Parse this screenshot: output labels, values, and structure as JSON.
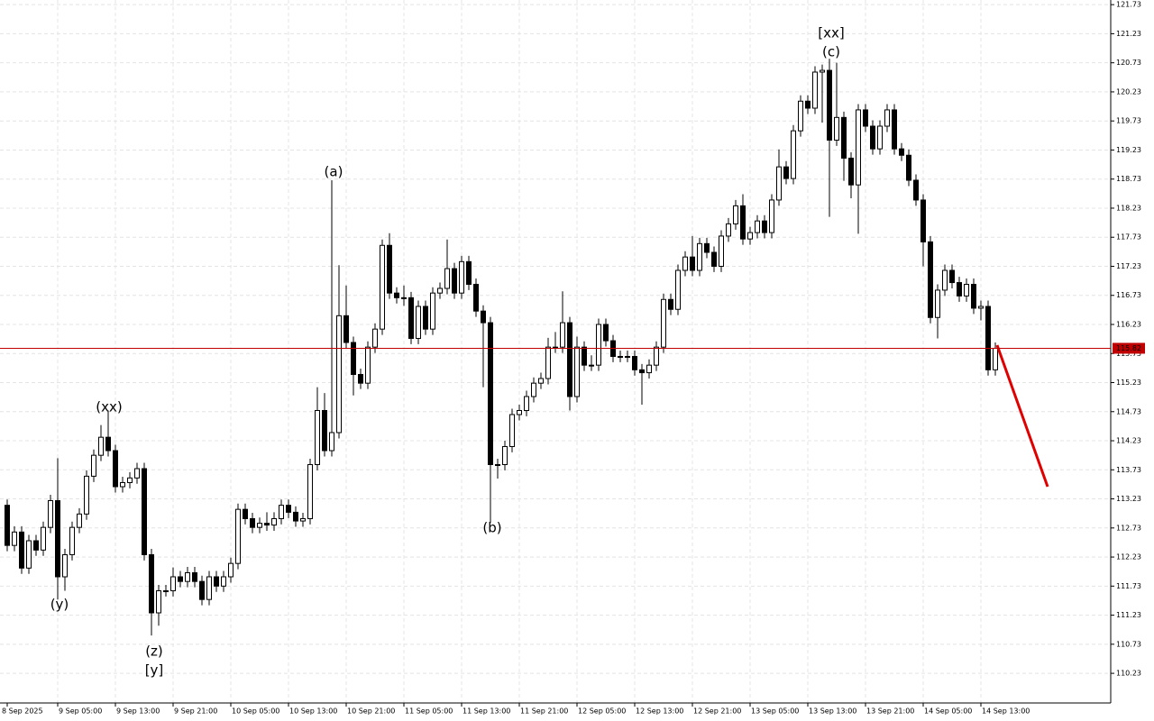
{
  "chart_data": {
    "type": "candlestick",
    "ylim": [
      109.72,
      121.81
    ],
    "yticks": [
      110.23,
      110.73,
      111.23,
      111.73,
      112.23,
      112.73,
      113.23,
      113.73,
      114.23,
      114.73,
      115.23,
      115.73,
      116.23,
      116.73,
      117.23,
      117.73,
      118.23,
      118.73,
      119.23,
      119.73,
      120.23,
      120.73,
      121.23,
      121.73
    ],
    "grid": true,
    "up_color": "#ffffff",
    "down_color": "#000000",
    "current_price": 115.82,
    "current_price_color": "#c00000",
    "categories": [
      "8 Sep 2025",
      null,
      null,
      null,
      null,
      null,
      null,
      "9 Sep 05:00",
      null,
      null,
      null,
      null,
      null,
      null,
      null,
      "9 Sep 13:00",
      null,
      null,
      null,
      null,
      null,
      null,
      null,
      "9 Sep 21:00",
      null,
      null,
      null,
      null,
      null,
      null,
      null,
      "10 Sep 05:00",
      null,
      null,
      null,
      null,
      null,
      null,
      null,
      "10 Sep 13:00",
      null,
      null,
      null,
      null,
      null,
      null,
      null,
      "10 Sep 21:00",
      null,
      null,
      null,
      null,
      null,
      null,
      null,
      "11 Sep 05:00",
      null,
      null,
      null,
      null,
      null,
      null,
      null,
      "11 Sep 13:00",
      null,
      null,
      null,
      null,
      null,
      null,
      null,
      "11 Sep 21:00",
      null,
      null,
      null,
      null,
      null,
      null,
      null,
      "12 Sep 05:00",
      null,
      null,
      null,
      null,
      null,
      null,
      null,
      "12 Sep 13:00",
      null,
      null,
      null,
      null,
      null,
      null,
      null,
      "12 Sep 21:00",
      null,
      null,
      null,
      null,
      null,
      null,
      null,
      "13 Sep 05:00",
      null,
      null,
      null,
      null,
      null,
      null,
      null,
      "13 Sep 13:00",
      null,
      null,
      null,
      null,
      null,
      null,
      null,
      "13 Sep 21:00",
      null,
      null,
      null,
      null,
      null,
      null,
      null,
      "14 Sep 05:00",
      null,
      null,
      null,
      null,
      null,
      null,
      null,
      "14 Sep 13:00",
      null,
      null
    ],
    "ohlc": [
      [
        113.12,
        113.22,
        112.33,
        112.43
      ],
      [
        112.43,
        112.76,
        112.33,
        112.66
      ],
      [
        112.66,
        112.76,
        111.94,
        112.04
      ],
      [
        112.04,
        112.61,
        111.94,
        112.51
      ],
      [
        112.51,
        112.61,
        112.25,
        112.35
      ],
      [
        112.35,
        112.84,
        112.25,
        112.74
      ],
      [
        112.74,
        113.3,
        112.64,
        113.2
      ],
      [
        113.2,
        113.93,
        111.5,
        111.89
      ],
      [
        111.89,
        112.37,
        111.65,
        112.27
      ],
      [
        112.27,
        112.84,
        112.17,
        112.74
      ],
      [
        112.74,
        113.07,
        112.64,
        112.97
      ],
      [
        112.97,
        113.72,
        112.87,
        113.62
      ],
      [
        113.62,
        114.08,
        113.52,
        113.98
      ],
      [
        113.98,
        114.5,
        113.88,
        114.29
      ],
      [
        114.29,
        114.75,
        113.96,
        114.06
      ],
      [
        114.06,
        114.16,
        113.34,
        113.44
      ],
      [
        113.44,
        113.61,
        113.34,
        113.51
      ],
      [
        113.51,
        113.69,
        113.41,
        113.59
      ],
      [
        113.59,
        113.85,
        113.49,
        113.75
      ],
      [
        113.75,
        113.85,
        112.17,
        112.27
      ],
      [
        112.27,
        112.37,
        110.88,
        111.27
      ],
      [
        111.27,
        111.75,
        111.05,
        111.65
      ],
      [
        111.65,
        111.75,
        111.55,
        111.65
      ],
      [
        111.65,
        112.05,
        111.55,
        111.89
      ],
      [
        111.89,
        111.99,
        111.71,
        111.81
      ],
      [
        111.81,
        112.06,
        111.71,
        111.96
      ],
      [
        111.96,
        112.06,
        111.71,
        111.81
      ],
      [
        111.81,
        111.91,
        111.4,
        111.5
      ],
      [
        111.5,
        111.99,
        111.4,
        111.89
      ],
      [
        111.89,
        111.99,
        111.63,
        111.73
      ],
      [
        111.73,
        111.99,
        111.63,
        111.89
      ],
      [
        111.89,
        112.22,
        111.79,
        112.12
      ],
      [
        112.12,
        113.15,
        112.02,
        113.05
      ],
      [
        113.05,
        113.15,
        112.79,
        112.89
      ],
      [
        112.89,
        112.99,
        112.64,
        112.74
      ],
      [
        112.74,
        112.91,
        112.64,
        112.81
      ],
      [
        112.81,
        113.0,
        112.68,
        112.78
      ],
      [
        112.78,
        113.0,
        112.68,
        112.89
      ],
      [
        112.89,
        113.22,
        112.79,
        113.12
      ],
      [
        113.12,
        113.22,
        112.9,
        113.0
      ],
      [
        113.0,
        113.1,
        112.75,
        112.85
      ],
      [
        112.85,
        112.99,
        112.75,
        112.89
      ],
      [
        112.89,
        113.92,
        112.79,
        113.82
      ],
      [
        113.82,
        115.15,
        113.72,
        114.75
      ],
      [
        114.75,
        115.05,
        113.96,
        114.06
      ],
      [
        114.06,
        118.71,
        113.96,
        114.37
      ],
      [
        114.37,
        117.25,
        114.27,
        116.38
      ],
      [
        116.38,
        116.9,
        115.82,
        115.92
      ],
      [
        115.92,
        116.02,
        115.01,
        115.37
      ],
      [
        115.37,
        115.47,
        115.12,
        115.22
      ],
      [
        115.22,
        115.94,
        115.12,
        115.84
      ],
      [
        115.84,
        116.25,
        115.74,
        116.15
      ],
      [
        116.15,
        117.69,
        116.05,
        117.59
      ],
      [
        117.59,
        117.8,
        116.67,
        116.77
      ],
      [
        116.77,
        116.87,
        116.59,
        116.69
      ],
      [
        116.69,
        116.9,
        116.55,
        116.69
      ],
      [
        116.69,
        116.79,
        115.89,
        115.99
      ],
      [
        115.99,
        116.64,
        115.89,
        116.54
      ],
      [
        116.54,
        116.64,
        116.05,
        116.15
      ],
      [
        116.15,
        116.87,
        116.05,
        116.77
      ],
      [
        116.77,
        116.95,
        116.67,
        116.85
      ],
      [
        116.85,
        117.69,
        116.75,
        117.19
      ],
      [
        117.19,
        117.29,
        116.67,
        116.77
      ],
      [
        116.77,
        117.41,
        116.67,
        117.31
      ],
      [
        117.31,
        117.41,
        116.82,
        116.92
      ],
      [
        116.92,
        117.02,
        116.36,
        116.46
      ],
      [
        116.46,
        116.56,
        115.15,
        116.26
      ],
      [
        116.26,
        116.36,
        112.82,
        113.82
      ],
      [
        113.82,
        113.92,
        113.58,
        113.82
      ],
      [
        113.82,
        114.23,
        113.72,
        114.13
      ],
      [
        114.13,
        114.78,
        114.03,
        114.68
      ],
      [
        114.68,
        114.85,
        114.58,
        114.75
      ],
      [
        114.75,
        115.09,
        114.65,
        114.99
      ],
      [
        114.99,
        115.32,
        114.89,
        115.22
      ],
      [
        115.22,
        115.4,
        115.12,
        115.3
      ],
      [
        115.3,
        116.0,
        115.2,
        115.84
      ],
      [
        115.84,
        116.1,
        115.74,
        115.84
      ],
      [
        115.84,
        116.8,
        115.74,
        116.26
      ],
      [
        116.26,
        116.36,
        114.75,
        114.99
      ],
      [
        114.99,
        116.02,
        114.89,
        115.84
      ],
      [
        115.84,
        115.94,
        115.43,
        115.53
      ],
      [
        115.53,
        115.7,
        115.43,
        115.53
      ],
      [
        115.53,
        116.33,
        115.43,
        116.23
      ],
      [
        116.23,
        116.33,
        115.85,
        115.95
      ],
      [
        115.95,
        116.05,
        115.58,
        115.68
      ],
      [
        115.68,
        115.78,
        115.58,
        115.68
      ],
      [
        115.68,
        115.78,
        115.58,
        115.68
      ],
      [
        115.68,
        115.78,
        115.35,
        115.45
      ],
      [
        115.45,
        115.55,
        114.85,
        115.4
      ],
      [
        115.4,
        115.63,
        115.3,
        115.53
      ],
      [
        115.53,
        115.94,
        115.43,
        115.84
      ],
      [
        115.84,
        116.76,
        115.74,
        116.66
      ],
      [
        116.66,
        116.76,
        116.39,
        116.49
      ],
      [
        116.49,
        117.26,
        116.39,
        117.16
      ],
      [
        117.16,
        117.49,
        117.06,
        117.39
      ],
      [
        117.39,
        117.75,
        117.06,
        117.16
      ],
      [
        117.16,
        117.72,
        117.06,
        117.62
      ],
      [
        117.62,
        117.72,
        117.37,
        117.47
      ],
      [
        117.47,
        117.57,
        117.13,
        117.23
      ],
      [
        117.23,
        117.85,
        117.13,
        117.75
      ],
      [
        117.75,
        118.06,
        117.65,
        117.96
      ],
      [
        117.96,
        118.37,
        117.86,
        118.27
      ],
      [
        118.27,
        118.47,
        117.6,
        117.7
      ],
      [
        117.7,
        117.91,
        117.6,
        117.81
      ],
      [
        117.81,
        118.11,
        117.71,
        118.01
      ],
      [
        118.01,
        118.11,
        117.71,
        117.81
      ],
      [
        117.81,
        118.47,
        117.71,
        118.37
      ],
      [
        118.37,
        119.24,
        118.27,
        118.94
      ],
      [
        118.94,
        119.04,
        118.64,
        118.74
      ],
      [
        118.74,
        119.66,
        118.64,
        119.56
      ],
      [
        119.56,
        120.17,
        119.46,
        120.07
      ],
      [
        120.07,
        120.17,
        119.85,
        119.95
      ],
      [
        119.95,
        120.67,
        119.85,
        120.57
      ],
      [
        120.57,
        120.7,
        119.7,
        120.6
      ],
      [
        120.6,
        120.8,
        118.08,
        119.4
      ],
      [
        119.4,
        120.73,
        119.3,
        119.79
      ],
      [
        119.79,
        119.89,
        118.7,
        119.09
      ],
      [
        119.09,
        119.19,
        118.4,
        118.63
      ],
      [
        118.63,
        120.02,
        117.79,
        119.92
      ],
      [
        119.92,
        120.02,
        119.54,
        119.64
      ],
      [
        119.64,
        119.74,
        119.15,
        119.25
      ],
      [
        119.25,
        119.74,
        119.15,
        119.64
      ],
      [
        119.64,
        120.02,
        119.54,
        119.92
      ],
      [
        119.92,
        120.02,
        119.15,
        119.25
      ],
      [
        119.25,
        119.35,
        119.04,
        119.14
      ],
      [
        119.14,
        119.24,
        118.61,
        118.71
      ],
      [
        118.71,
        118.81,
        118.27,
        118.37
      ],
      [
        118.37,
        118.47,
        117.23,
        117.65
      ],
      [
        117.65,
        117.75,
        116.25,
        116.35
      ],
      [
        116.35,
        116.92,
        115.99,
        116.82
      ],
      [
        116.82,
        117.26,
        116.72,
        117.16
      ],
      [
        117.16,
        117.26,
        116.85,
        116.95
      ],
      [
        116.95,
        117.05,
        116.62,
        116.72
      ],
      [
        116.72,
        117.02,
        116.62,
        116.92
      ],
      [
        116.92,
        117.02,
        116.41,
        116.51
      ],
      [
        116.51,
        116.64,
        116.3,
        116.54
      ],
      [
        116.54,
        116.64,
        115.35,
        115.45
      ],
      [
        115.45,
        115.92,
        115.35,
        115.82
      ]
    ],
    "annotations": [
      {
        "text": "(xx)",
        "color": "#1f1fd0"
      },
      {
        "text": "(y)",
        "color": "#1f1fd0"
      },
      {
        "text": "(z)",
        "color": "#1f1fd0"
      },
      {
        "text": "[y]",
        "color": "#44bb33"
      },
      {
        "text": "(a)",
        "color": "#1f1fd0"
      },
      {
        "text": "(b)",
        "color": "#1f1fd0"
      },
      {
        "text": "[xx]",
        "color": "#44bb33"
      },
      {
        "text": "(c)",
        "color": "#1f1fd0"
      }
    ]
  }
}
